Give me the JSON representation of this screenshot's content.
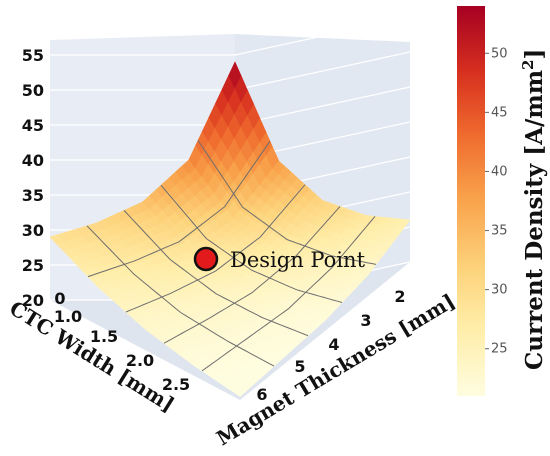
{
  "chart_data": {
    "type": "surface",
    "xlabel": "CTC Width [mm]",
    "ylabel": "Magnet Thickness [mm]",
    "colorbar_label": "Current Density [A/mm",
    "colorbar_label_sup": "2",
    "colorbar_label_end": "]",
    "x_ticks": [
      "0",
      "1.0",
      "1.5",
      "2.0",
      "2.5"
    ],
    "y_ticks": [
      "2",
      "3",
      "4",
      "5",
      "6"
    ],
    "z_ticks": [
      "20",
      "25",
      "30",
      "35",
      "40",
      "45",
      "50",
      "55"
    ],
    "colorbar_ticks": [
      "25",
      "30",
      "35",
      "40",
      "45",
      "50"
    ],
    "colorbar_range": [
      21,
      54
    ],
    "colormap": [
      "#fffde0",
      "#ffeeaa",
      "#fdd27a",
      "#f9a44c",
      "#ef6b2e",
      "#d7301f",
      "#a60022"
    ],
    "grid_x": [
      0.5,
      1.0,
      1.5,
      2.0,
      2.5
    ],
    "grid_y": [
      2,
      3,
      4,
      5,
      6
    ],
    "grid_values": [
      [
        54,
        38.5,
        31.5,
        28.0,
        26.0
      ],
      [
        40,
        31.5,
        27.0,
        24.5,
        23.0
      ],
      [
        34,
        28.0,
        24.5,
        22.5,
        21.5
      ],
      [
        31,
        26.5,
        23.5,
        22.0,
        21.0
      ],
      [
        29,
        25.5,
        23.0,
        21.5,
        20.5
      ]
    ],
    "annotation": {
      "label": "Design Point",
      "x": 1.25,
      "y": 3.7,
      "value": 27.5,
      "marker_color": "#e31a1c"
    }
  }
}
